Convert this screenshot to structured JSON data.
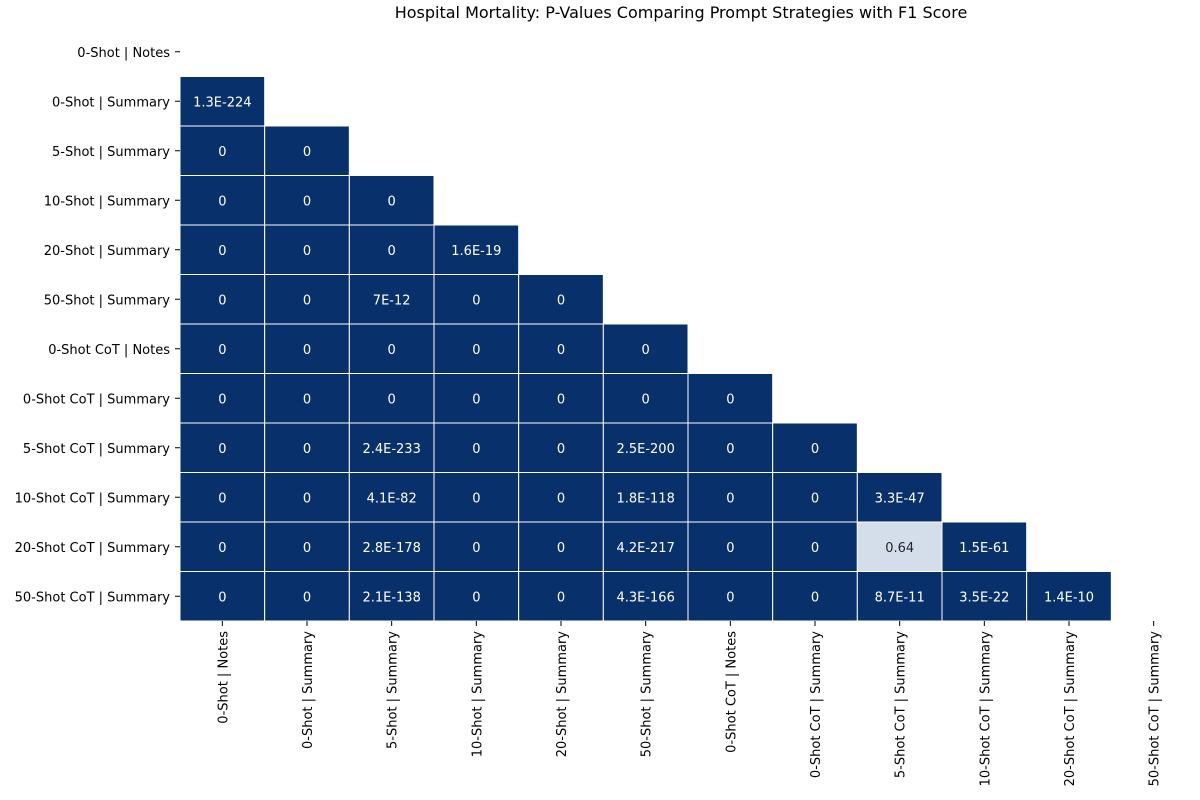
{
  "chart_data": {
    "type": "heatmap",
    "title": "Hospital Mortality: P-Values Comparing Prompt Strategies with F1 Score",
    "xlabel": "",
    "ylabel": "",
    "grid": false,
    "masked": "upper-triangle-including-diagonal",
    "labels": [
      "0-Shot | Notes",
      "0-Shot | Summary",
      "5-Shot | Summary",
      "10-Shot | Summary",
      "20-Shot | Summary",
      "50-Shot | Summary",
      "0-Shot CoT | Notes",
      "0-Shot CoT | Summary",
      "5-Shot CoT | Summary",
      "10-Shot CoT | Summary",
      "20-Shot CoT | Summary",
      "50-Shot CoT | Summary"
    ],
    "rows": [
      [],
      [
        "1.3E-224"
      ],
      [
        "0",
        "0"
      ],
      [
        "0",
        "0",
        "0"
      ],
      [
        "0",
        "0",
        "0",
        "1.6E-19"
      ],
      [
        "0",
        "0",
        "7E-12",
        "0",
        "0"
      ],
      [
        "0",
        "0",
        "0",
        "0",
        "0",
        "0"
      ],
      [
        "0",
        "0",
        "0",
        "0",
        "0",
        "0",
        "0"
      ],
      [
        "0",
        "0",
        "2.4E-233",
        "0",
        "0",
        "2.5E-200",
        "0",
        "0"
      ],
      [
        "0",
        "0",
        "4.1E-82",
        "0",
        "0",
        "1.8E-118",
        "0",
        "0",
        "3.3E-47"
      ],
      [
        "0",
        "0",
        "2.8E-178",
        "0",
        "0",
        "4.2E-217",
        "0",
        "0",
        "0.64",
        "1.5E-61"
      ],
      [
        "0",
        "0",
        "2.1E-138",
        "0",
        "0",
        "4.3E-166",
        "0",
        "0",
        "8.7E-11",
        "3.5E-22",
        "1.4E-10"
      ]
    ],
    "colormap": {
      "low": "#08306b",
      "high": "#f7fbff",
      "text_on_dark": "#ffffff",
      "text_on_light": "#262626",
      "cell_border": "#ffffff"
    }
  }
}
